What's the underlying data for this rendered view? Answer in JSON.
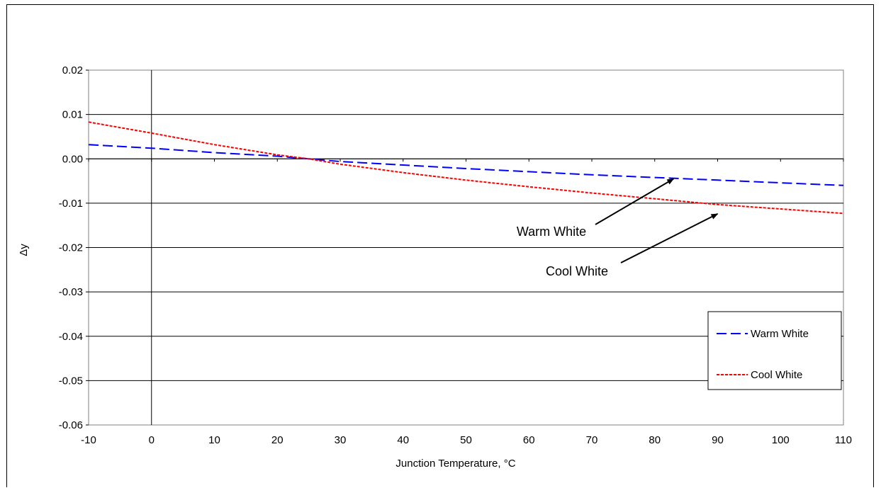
{
  "chart_data": {
    "type": "line",
    "title": "",
    "xlabel": "Junction Temperature, °C",
    "ylabel": "Δy",
    "xlim": [
      -10,
      110
    ],
    "ylim": [
      -0.06,
      0.02
    ],
    "x_ticks": [
      "-10",
      "0",
      "10",
      "20",
      "30",
      "40",
      "50",
      "60",
      "70",
      "80",
      "90",
      "100",
      "110"
    ],
    "y_ticks": [
      "0.02",
      "0.01",
      "0.00",
      "-0.01",
      "-0.02",
      "-0.03",
      "-0.04",
      "-0.05",
      "-0.06"
    ],
    "grid": "horizontal",
    "legend_position": "bottom-right",
    "series": [
      {
        "name": "Warm White",
        "color": "#0000ff",
        "line_style": "long-dash",
        "x": [
          -10,
          0,
          10,
          20,
          25,
          30,
          40,
          50,
          60,
          70,
          80,
          90,
          100,
          110
        ],
        "y": [
          0.0032,
          0.0024,
          0.0014,
          0.0006,
          0.0,
          -0.0006,
          -0.0014,
          -0.0022,
          -0.0029,
          -0.0036,
          -0.0042,
          -0.0048,
          -0.0054,
          -0.006
        ]
      },
      {
        "name": "Cool White",
        "color": "#ff0000",
        "line_style": "short-dash",
        "x": [
          -10,
          0,
          10,
          20,
          25,
          30,
          40,
          50,
          60,
          70,
          80,
          90,
          100,
          110
        ],
        "y": [
          0.0083,
          0.0058,
          0.0032,
          0.0009,
          0.0,
          -0.0012,
          -0.0031,
          -0.0048,
          -0.0063,
          -0.0077,
          -0.009,
          -0.0103,
          -0.0113,
          -0.0123
        ]
      }
    ],
    "annotations": [
      {
        "text": "Warm White",
        "target_x": 83,
        "target_y": -0.0045,
        "role": "arrow-label"
      },
      {
        "text": "Cool White",
        "target_x": 90,
        "target_y": -0.0124,
        "role": "arrow-label"
      }
    ]
  }
}
